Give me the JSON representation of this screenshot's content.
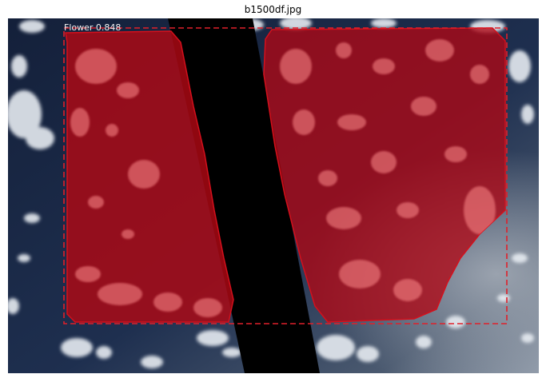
{
  "figure": {
    "title": "b1500df.jpg"
  },
  "detection": {
    "label": "Flower 0.848",
    "class_name": "Flower",
    "score": 0.848,
    "box_color": "#e0202a",
    "mask_color": "#cc0a14"
  },
  "image": {
    "ocean_color": "#1b2a45",
    "cloud_color": "#e8edf3",
    "gap_color": "#000000"
  }
}
